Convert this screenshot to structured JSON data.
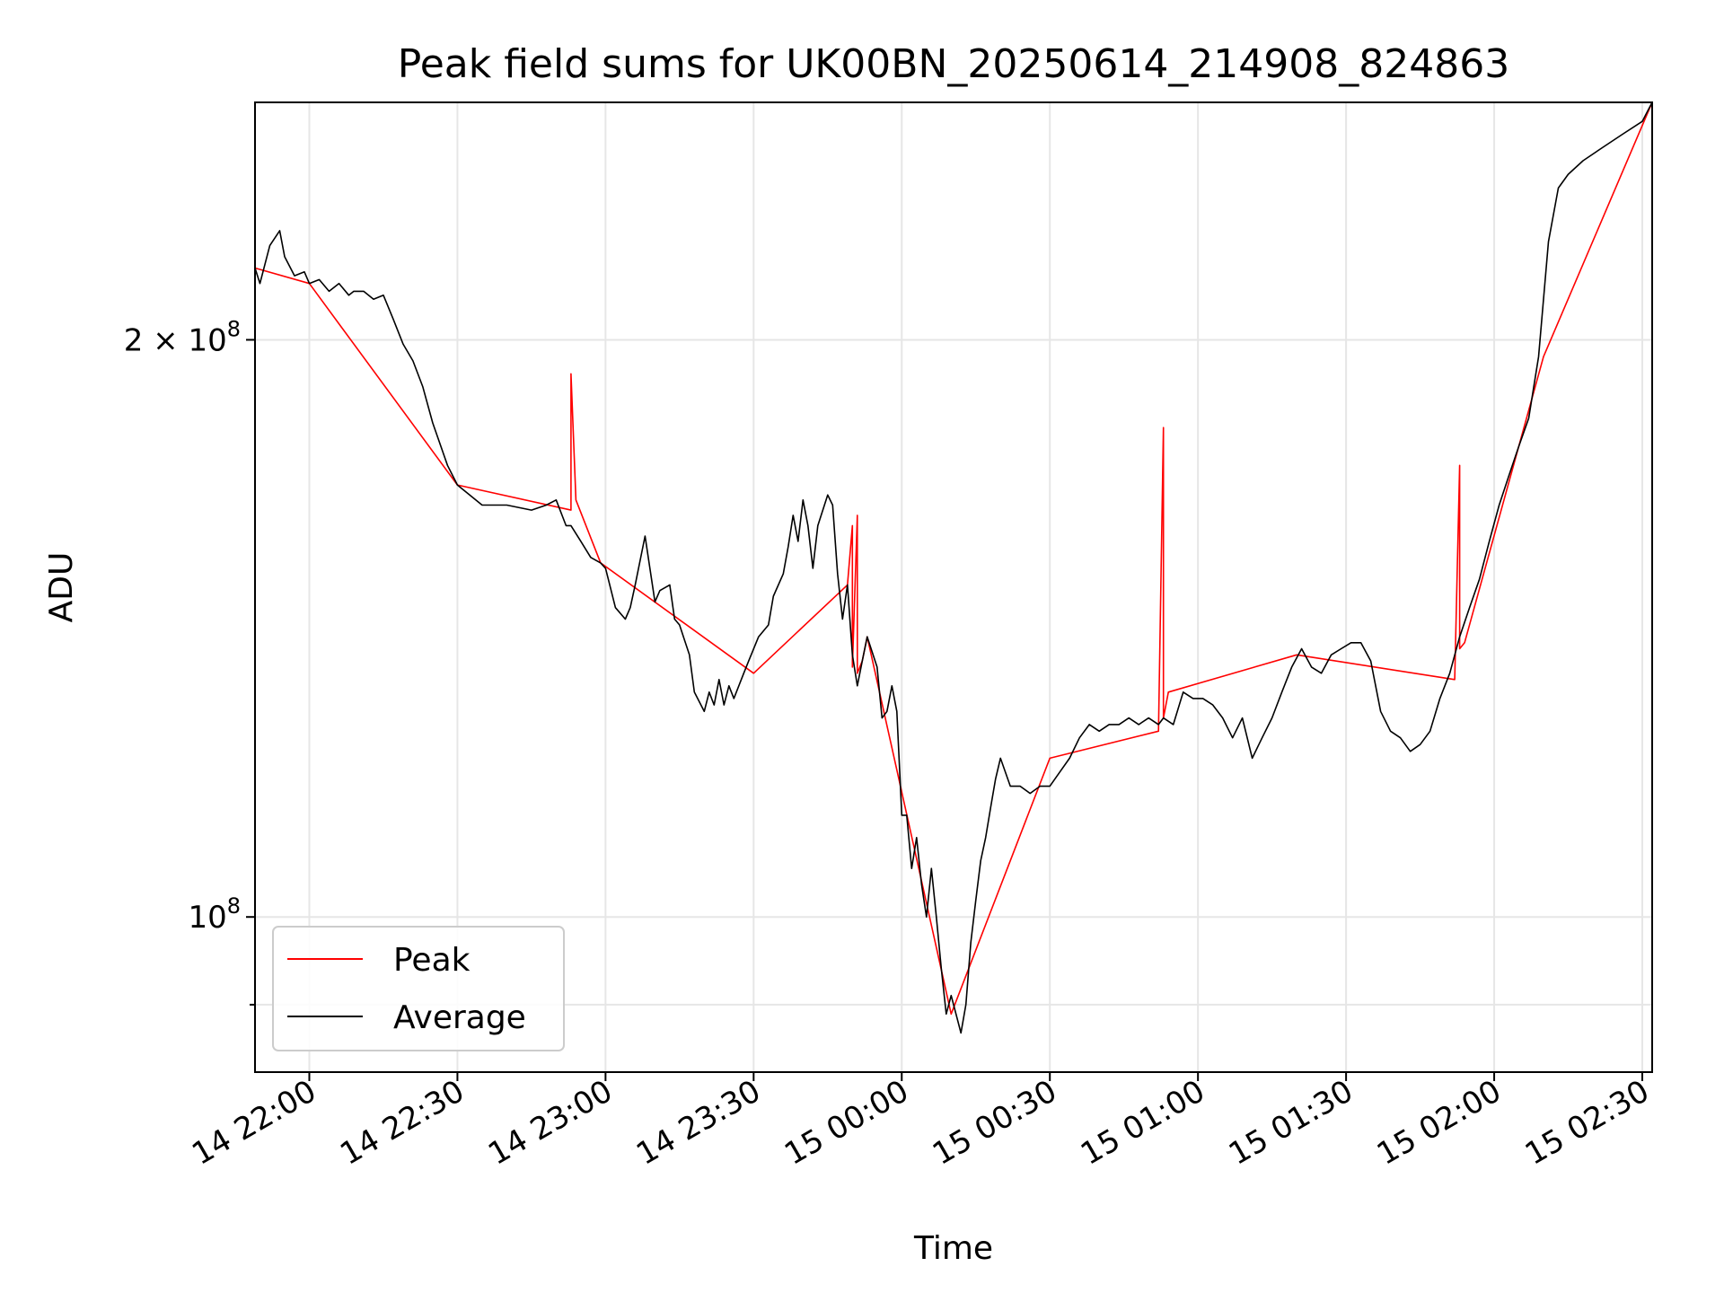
{
  "chart_data": {
    "type": "line",
    "title": "Peak field sums for UK00BN_20250614_214908_824863",
    "xlabel": "Time",
    "ylabel": "ADU",
    "y_scale": "log",
    "ylim": [
      83000000,
      266000000
    ],
    "xlim": [
      "2025-06-14 21:49",
      "2025-06-15 02:32"
    ],
    "x_ticks": [
      "14 22:00",
      "14 22:30",
      "14 23:00",
      "14 23:30",
      "15 00:00",
      "15 00:30",
      "15 01:00",
      "15 01:30",
      "15 02:00",
      "15 02:30"
    ],
    "y_tick_labels": [
      {
        "value": 200000000,
        "mantissa": "2 × 10",
        "exponent": "8"
      },
      {
        "value": 100000000,
        "mantissa": "10",
        "exponent": "8"
      }
    ],
    "y_minor_ticks": [
      90000000
    ],
    "grid": true,
    "legend": {
      "placement": "lower-left",
      "entries": [
        "Peak",
        "Average"
      ]
    },
    "colors": {
      "Peak": "#ff0000",
      "Average": "#000000"
    },
    "series": [
      {
        "name": "Average",
        "color": "#000000",
        "x": [
          "2025-06-14 21:49",
          "2025-06-14 21:50",
          "2025-06-14 21:52",
          "2025-06-14 21:54",
          "2025-06-14 21:55",
          "2025-06-14 21:57",
          "2025-06-14 21:59",
          "2025-06-14 22:00",
          "2025-06-14 22:02",
          "2025-06-14 22:04",
          "2025-06-14 22:06",
          "2025-06-14 22:08",
          "2025-06-14 22:09",
          "2025-06-14 22:11",
          "2025-06-14 22:13",
          "2025-06-14 22:15",
          "2025-06-14 22:17",
          "2025-06-14 22:19",
          "2025-06-14 22:21",
          "2025-06-14 22:23",
          "2025-06-14 22:25",
          "2025-06-14 22:28",
          "2025-06-14 22:30",
          "2025-06-14 22:35",
          "2025-06-14 22:40",
          "2025-06-14 22:45",
          "2025-06-14 22:48",
          "2025-06-14 22:50",
          "2025-06-14 22:52",
          "2025-06-14 22:53",
          "2025-06-14 22:55",
          "2025-06-14 22:57",
          "2025-06-14 22:59",
          "2025-06-14 23:00",
          "2025-06-14 23:02",
          "2025-06-14 23:04",
          "2025-06-14 23:05",
          "2025-06-14 23:06",
          "2025-06-14 23:08",
          "2025-06-14 23:10",
          "2025-06-14 23:11",
          "2025-06-14 23:13",
          "2025-06-14 23:14",
          "2025-06-14 23:15",
          "2025-06-14 23:17",
          "2025-06-14 23:18",
          "2025-06-14 23:20",
          "2025-06-14 23:21",
          "2025-06-14 23:22",
          "2025-06-14 23:23",
          "2025-06-14 23:24",
          "2025-06-14 23:25",
          "2025-06-14 23:26",
          "2025-06-14 23:28",
          "2025-06-14 23:29",
          "2025-06-14 23:31",
          "2025-06-14 23:33",
          "2025-06-14 23:34",
          "2025-06-14 23:36",
          "2025-06-14 23:37",
          "2025-06-14 23:38",
          "2025-06-14 23:39",
          "2025-06-14 23:40",
          "2025-06-14 23:41",
          "2025-06-14 23:42",
          "2025-06-14 23:43",
          "2025-06-14 23:45",
          "2025-06-14 23:46",
          "2025-06-14 23:47",
          "2025-06-14 23:48",
          "2025-06-14 23:49",
          "2025-06-14 23:50",
          "2025-06-14 23:51",
          "2025-06-14 23:52",
          "2025-06-14 23:53",
          "2025-06-14 23:55",
          "2025-06-14 23:56",
          "2025-06-14 23:57",
          "2025-06-14 23:58",
          "2025-06-14 23:59",
          "2025-06-15 00:00",
          "2025-06-15 00:01",
          "2025-06-15 00:02",
          "2025-06-15 00:03",
          "2025-06-15 00:04",
          "2025-06-15 00:05",
          "2025-06-15 00:06",
          "2025-06-15 00:07",
          "2025-06-15 00:08",
          "2025-06-15 00:09",
          "2025-06-15 00:10",
          "2025-06-15 00:11",
          "2025-06-15 00:12",
          "2025-06-15 00:13",
          "2025-06-15 00:14",
          "2025-06-15 00:15",
          "2025-06-15 00:16",
          "2025-06-15 00:17",
          "2025-06-15 00:18",
          "2025-06-15 00:19",
          "2025-06-15 00:20",
          "2025-06-15 00:22",
          "2025-06-15 00:24",
          "2025-06-15 00:26",
          "2025-06-15 00:28",
          "2025-06-15 00:30",
          "2025-06-15 00:32",
          "2025-06-15 00:34",
          "2025-06-15 00:36",
          "2025-06-15 00:38",
          "2025-06-15 00:40",
          "2025-06-15 00:42",
          "2025-06-15 00:44",
          "2025-06-15 00:46",
          "2025-06-15 00:48",
          "2025-06-15 00:50",
          "2025-06-15 00:52",
          "2025-06-15 00:53",
          "2025-06-15 00:55",
          "2025-06-15 00:57",
          "2025-06-15 00:59",
          "2025-06-15 01:01",
          "2025-06-15 01:03",
          "2025-06-15 01:05",
          "2025-06-15 01:07",
          "2025-06-15 01:09",
          "2025-06-15 01:11",
          "2025-06-15 01:13",
          "2025-06-15 01:15",
          "2025-06-15 01:17",
          "2025-06-15 01:19",
          "2025-06-15 01:21",
          "2025-06-15 01:23",
          "2025-06-15 01:25",
          "2025-06-15 01:27",
          "2025-06-15 01:29",
          "2025-06-15 01:31",
          "2025-06-15 01:33",
          "2025-06-15 01:35",
          "2025-06-15 01:37",
          "2025-06-15 01:39",
          "2025-06-15 01:41",
          "2025-06-15 01:43",
          "2025-06-15 01:45",
          "2025-06-15 01:47",
          "2025-06-15 01:49",
          "2025-06-15 01:51",
          "2025-06-15 01:53",
          "2025-06-15 01:55",
          "2025-06-15 01:57",
          "2025-06-15 01:59",
          "2025-06-15 02:01",
          "2025-06-15 02:03",
          "2025-06-15 02:05",
          "2025-06-15 02:07",
          "2025-06-15 02:09",
          "2025-06-15 02:11",
          "2025-06-15 02:13",
          "2025-06-15 02:15",
          "2025-06-15 02:18",
          "2025-06-15 02:22",
          "2025-06-15 02:26",
          "2025-06-15 02:30",
          "2025-06-15 02:32"
        ],
        "y": [
          218000000,
          214000000,
          224000000,
          228000000,
          221000000,
          216000000,
          217000000,
          214000000,
          215000000,
          212000000,
          214000000,
          211000000,
          212000000,
          212000000,
          210000000,
          211000000,
          205000000,
          199000000,
          195000000,
          189000000,
          181000000,
          172000000,
          168000000,
          164000000,
          164000000,
          163000000,
          164000000,
          165000000,
          160000000,
          160000000,
          157000000,
          154000000,
          153000000,
          152000000,
          145000000,
          143000000,
          145000000,
          149000000,
          158000000,
          146000000,
          148000000,
          149000000,
          143000000,
          142000000,
          137000000,
          131000000,
          128000000,
          131000000,
          129000000,
          133000000,
          129000000,
          132000000,
          130000000,
          134000000,
          136000000,
          140000000,
          142000000,
          147000000,
          151000000,
          156000000,
          162000000,
          157000000,
          165000000,
          160000000,
          152000000,
          160000000,
          166000000,
          164000000,
          151000000,
          143000000,
          149000000,
          137000000,
          132000000,
          136000000,
          140000000,
          135000000,
          127000000,
          128000000,
          132000000,
          128000000,
          113000000,
          113000000,
          106000000,
          110000000,
          104000000,
          100000000,
          106000000,
          100000000,
          94000000,
          89000000,
          91000000,
          89000000,
          87000000,
          90000000,
          97000000,
          102000000,
          107000000,
          110000000,
          114000000,
          118000000,
          121000000,
          117000000,
          117000000,
          116000000,
          117000000,
          117000000,
          119000000,
          121000000,
          124000000,
          126000000,
          125000000,
          126000000,
          126000000,
          127000000,
          126000000,
          127000000,
          126000000,
          127000000,
          126000000,
          131000000,
          130000000,
          130000000,
          129000000,
          127000000,
          124000000,
          127000000,
          121000000,
          124000000,
          127000000,
          131000000,
          135000000,
          138000000,
          135000000,
          134000000,
          137000000,
          138000000,
          139000000,
          139000000,
          136000000,
          128000000,
          125000000,
          124000000,
          122000000,
          123000000,
          125000000,
          130000000,
          134000000,
          140000000,
          145000000,
          150000000,
          157000000,
          164000000,
          170000000,
          176000000,
          182000000,
          196000000,
          225000000,
          240000000,
          244000000,
          248000000,
          252000000,
          256000000,
          260000000,
          266000000
        ]
      },
      {
        "name": "Peak",
        "color": "#ff0000",
        "x": [
          "2025-06-14 21:49",
          "2025-06-14 22:00",
          "2025-06-14 22:30",
          "2025-06-14 22:53",
          "2025-06-14 22:53",
          "2025-06-14 22:54",
          "2025-06-14 22:59",
          "2025-06-14 23:30",
          "2025-06-14 23:49",
          "2025-06-14 23:50",
          "2025-06-14 23:50",
          "2025-06-14 23:51",
          "2025-06-14 23:51",
          "2025-06-14 23:52",
          "2025-06-14 23:53",
          "2025-06-15 00:10",
          "2025-06-15 00:30",
          "2025-06-15 00:52",
          "2025-06-15 00:53",
          "2025-06-15 00:53",
          "2025-06-15 00:54",
          "2025-06-15 01:20",
          "2025-06-15 01:52",
          "2025-06-15 01:53",
          "2025-06-15 01:53",
          "2025-06-15 01:54",
          "2025-06-15 02:10",
          "2025-06-15 02:32"
        ],
        "y": [
          218000000,
          214000000,
          168000000,
          163000000,
          192000000,
          165000000,
          153000000,
          134000000,
          149000000,
          160000000,
          135000000,
          162000000,
          134000000,
          136000000,
          140000000,
          89000000,
          121000000,
          125000000,
          180000000,
          127000000,
          131000000,
          137000000,
          133000000,
          172000000,
          138000000,
          139000000,
          196000000,
          266000000
        ]
      }
    ]
  }
}
